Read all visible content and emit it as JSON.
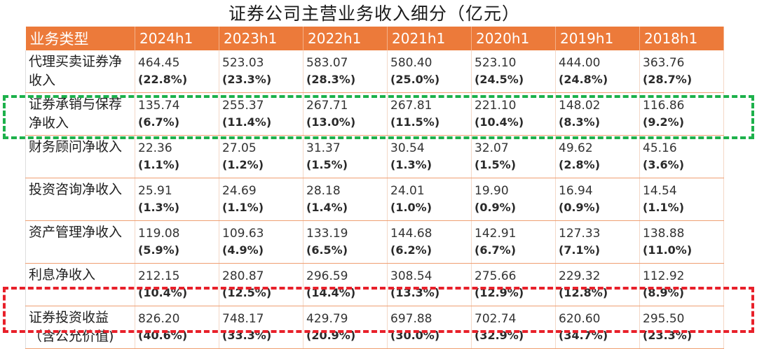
{
  "title": "证券公司主营业务收入细分（亿元）",
  "header": [
    "业务类型",
    "2024h1",
    "2023h1",
    "2022h1",
    "2021h1",
    "2020h1",
    "2019h1",
    "2018h1"
  ],
  "rows": [
    {
      "label": "代理买卖证券净收入",
      "cells": [
        {
          "v": "464.45",
          "p": "(22.8%)"
        },
        {
          "v": "523.03",
          "p": "(23.3%)"
        },
        {
          "v": "583.07",
          "p": "(28.3%)"
        },
        {
          "v": "580.40",
          "p": "(25.0%)"
        },
        {
          "v": "523.10",
          "p": "(24.5%)"
        },
        {
          "v": "444.00",
          "p": "(24.8%)"
        },
        {
          "v": "363.76",
          "p": "(28.7%)"
        }
      ]
    },
    {
      "label": "证券承销与保荐净收入",
      "cells": [
        {
          "v": "135.74",
          "p": "(6.7%)"
        },
        {
          "v": "255.37",
          "p": "(11.4%)"
        },
        {
          "v": "267.71",
          "p": "(13.0%)"
        },
        {
          "v": "267.81",
          "p": "(11.5%)"
        },
        {
          "v": "221.10",
          "p": "(10.4%)"
        },
        {
          "v": "148.02",
          "p": "(8.3%)"
        },
        {
          "v": "116.86",
          "p": "(9.2%)"
        }
      ]
    },
    {
      "label": "财务顾问净收入",
      "cells": [
        {
          "v": "22.36",
          "p": "(1.1%)"
        },
        {
          "v": "27.05",
          "p": "(1.2%)"
        },
        {
          "v": "31.37",
          "p": "(1.5%)"
        },
        {
          "v": "30.54",
          "p": "(1.3%)"
        },
        {
          "v": "32.07",
          "p": "(1.5%)"
        },
        {
          "v": "49.62",
          "p": "(2.8%)"
        },
        {
          "v": "45.16",
          "p": "(3.6%)"
        }
      ]
    },
    {
      "label": "投资咨询净收入",
      "cells": [
        {
          "v": "25.91",
          "p": "(1.3%)"
        },
        {
          "v": "24.69",
          "p": "(1.1%)"
        },
        {
          "v": "28.18",
          "p": "(1.4%)"
        },
        {
          "v": "24.01",
          "p": "(1.0%)"
        },
        {
          "v": "19.90",
          "p": "(0.9%)"
        },
        {
          "v": "16.94",
          "p": "(0.9%)"
        },
        {
          "v": "14.54",
          "p": "(1.1%)"
        }
      ]
    },
    {
      "label": "资产管理净收入",
      "cells": [
        {
          "v": "119.08",
          "p": "(5.9%)"
        },
        {
          "v": "109.63",
          "p": "(4.9%)"
        },
        {
          "v": "133.19",
          "p": "(6.5%)"
        },
        {
          "v": "144.68",
          "p": "(6.2%)"
        },
        {
          "v": "142.91",
          "p": "(6.7%)"
        },
        {
          "v": "127.33",
          "p": "(7.1%)"
        },
        {
          "v": "138.88",
          "p": "(11.0%)"
        }
      ]
    },
    {
      "label": "利息净收入",
      "cells": [
        {
          "v": "212.15",
          "p": "(10.4%)"
        },
        {
          "v": "280.87",
          "p": "(12.5%)"
        },
        {
          "v": "296.59",
          "p": "(14.4%)"
        },
        {
          "v": "308.54",
          "p": "(13.3%)"
        },
        {
          "v": "275.66",
          "p": "(12.9%)"
        },
        {
          "v": "229.32",
          "p": "(12.8%)"
        },
        {
          "v": "112.92",
          "p": "(8.9%)"
        }
      ]
    },
    {
      "label": "证券投资收益（含公允价值)",
      "cells": [
        {
          "v": "826.20",
          "p": "(40.6%)"
        },
        {
          "v": "748.17",
          "p": "(33.3%)"
        },
        {
          "v": "429.79",
          "p": "(20.9%)"
        },
        {
          "v": "697.88",
          "p": "(30.0%)"
        },
        {
          "v": "702.74",
          "p": "(32.9%)"
        },
        {
          "v": "620.60",
          "p": "(34.7%)"
        },
        {
          "v": "295.50",
          "p": "(23.3%)"
        }
      ]
    }
  ],
  "colors": {
    "header_bg": "#ec7a3a",
    "highlight_green": "#1db14b",
    "highlight_red": "#e8202a"
  }
}
